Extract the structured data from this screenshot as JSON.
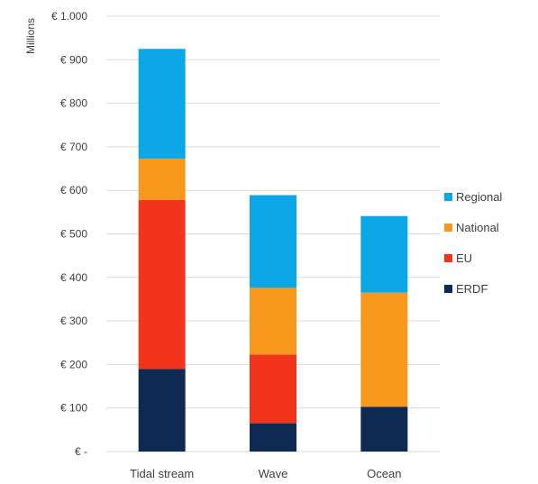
{
  "chart_data": {
    "type": "bar",
    "stacked": true,
    "categories": [
      "Tidal stream",
      "Wave",
      "Ocean"
    ],
    "ylabel": "Millions",
    "ylim": [
      0,
      1000
    ],
    "yticks": [
      0,
      100,
      200,
      300,
      400,
      500,
      600,
      700,
      800,
      900,
      1000
    ],
    "ytick_labels": [
      "€ -",
      "€ 100",
      "€ 200",
      "€ 300",
      "€ 400",
      "€ 500",
      "€ 600",
      "€ 700",
      "€ 800",
      "€ 900",
      "€ 1.000"
    ],
    "grid": true,
    "legend": "right",
    "series": [
      {
        "name": "ERDF",
        "color": "#0f2a52",
        "values": [
          190,
          65,
          103
        ]
      },
      {
        "name": "EU",
        "color": "#f2341c",
        "values": [
          388,
          158,
          0
        ]
      },
      {
        "name": "National",
        "color": "#f8991d",
        "values": [
          95,
          153,
          262
        ]
      },
      {
        "name": "Regional",
        "color": "#0ba7e6",
        "values": [
          252,
          213,
          176
        ]
      }
    ]
  }
}
